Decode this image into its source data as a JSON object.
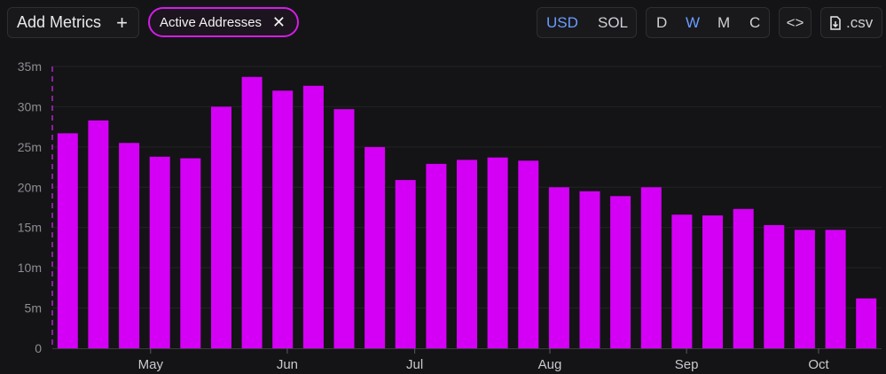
{
  "toolbar": {
    "add_metrics_label": "Add Metrics",
    "metric_chip_label": "Active Addresses",
    "currency_options": [
      "USD",
      "SOL"
    ],
    "currency_selected": "USD",
    "period_options": [
      "D",
      "W",
      "M",
      "C"
    ],
    "period_selected": "W",
    "embed_label": "<>",
    "csv_label": ".csv"
  },
  "colors": {
    "background": "#141416",
    "bar": "#d400f5",
    "accent": "#6a9cff",
    "chip_border": "#d21ee6",
    "axis_text": "#8c8c93",
    "grid": "#232327"
  },
  "chart_data": {
    "type": "bar",
    "title": "",
    "xlabel": "",
    "ylabel": "",
    "ylim": [
      0,
      35000000
    ],
    "y_ticks": [
      0,
      5000000,
      10000000,
      15000000,
      20000000,
      25000000,
      30000000,
      35000000
    ],
    "y_tick_labels": [
      "0",
      "5m",
      "10m",
      "15m",
      "20m",
      "25m",
      "30m",
      "35m"
    ],
    "x_tick_labels": [
      "May",
      "Jun",
      "Jul",
      "Aug",
      "Sep",
      "Oct"
    ],
    "x_tick_positions": [
      3.2,
      7.65,
      11.8,
      16.2,
      20.65,
      24.95
    ],
    "grid": true,
    "series": [
      {
        "values": [
          26700000,
          28300000,
          25500000,
          23800000,
          23600000,
          30000000,
          33700000,
          32000000,
          32600000,
          29700000,
          25000000,
          20900000,
          22900000,
          23400000,
          23700000,
          23300000,
          20000000,
          19500000,
          18900000,
          20000000,
          16600000,
          16500000,
          17300000,
          15300000,
          14700000,
          14700000,
          6200000
        ]
      }
    ]
  }
}
